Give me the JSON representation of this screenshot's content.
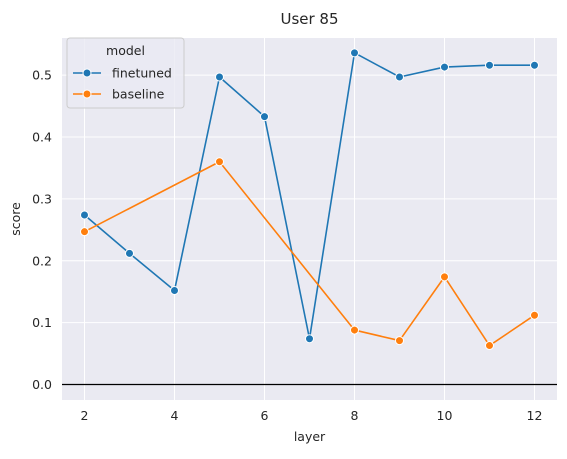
{
  "chart_data": {
    "type": "line",
    "title": "User 85",
    "xlabel": "layer",
    "ylabel": "score",
    "xlim": [
      1.5,
      12.5
    ],
    "ylim": [
      -0.025,
      0.56
    ],
    "xticks": [
      2,
      4,
      6,
      8,
      10,
      12
    ],
    "yticks": [
      0.0,
      0.1,
      0.2,
      0.3,
      0.4,
      0.5
    ],
    "ytick_labels": [
      "0.0",
      "0.1",
      "0.2",
      "0.3",
      "0.4",
      "0.5"
    ],
    "grid": true,
    "reference_line_y": 0.0,
    "legend": {
      "title": "model",
      "placement": "top-left"
    },
    "series": [
      {
        "name": "finetuned",
        "color": "#1f77b4",
        "x": [
          2,
          3,
          4,
          5,
          6,
          7,
          8,
          9,
          10,
          11,
          12
        ],
        "y": [
          0.274,
          0.212,
          0.152,
          0.497,
          0.433,
          0.074,
          0.536,
          0.497,
          0.513,
          0.516,
          0.516
        ]
      },
      {
        "name": "baseline",
        "color": "#ff7f0e",
        "x": [
          2,
          5,
          8,
          9,
          10,
          11,
          12
        ],
        "y": [
          0.247,
          0.36,
          0.088,
          0.071,
          0.174,
          0.063,
          0.112
        ]
      }
    ]
  }
}
